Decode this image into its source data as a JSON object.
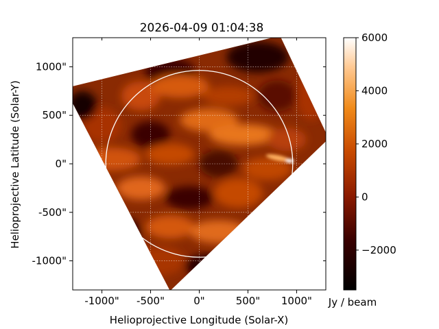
{
  "chart_data": {
    "type": "heatmap",
    "title": "2026-04-09 01:04:38",
    "xlabel": "Helioprojective Longitude (Solar-X)",
    "ylabel": "Helioprojective Latitude (Solar-Y)",
    "xlim": [
      -1300,
      1300
    ],
    "ylim": [
      -1300,
      1300
    ],
    "x_ticks": [
      {
        "value": -1000,
        "label": "-1000\""
      },
      {
        "value": -500,
        "label": "-500\""
      },
      {
        "value": 0,
        "label": "0\""
      },
      {
        "value": 500,
        "label": "500\""
      },
      {
        "value": 1000,
        "label": "1000\""
      }
    ],
    "y_ticks": [
      {
        "value": 1000,
        "label": "1000\""
      },
      {
        "value": 500,
        "label": "500\""
      },
      {
        "value": 0,
        "label": "0\""
      },
      {
        "value": -500,
        "label": "-500\""
      },
      {
        "value": -1000,
        "label": "-1000\""
      }
    ],
    "grid": true,
    "solar_limb_radius_arcsec": 960,
    "colormap": "sdoaia304 (black-red-orange-white)",
    "colorbar": {
      "range": [
        -3500,
        6000
      ],
      "ticks": [
        {
          "value": 6000,
          "label": "6000"
        },
        {
          "value": 4000,
          "label": "4000"
        },
        {
          "value": 2000,
          "label": "2000"
        },
        {
          "value": 0,
          "label": "0"
        },
        {
          "value": -2000,
          "label": "−2000"
        }
      ],
      "unit": "Jy / beam"
    },
    "image_corners_arcsec": [
      [
        830,
        1320
      ],
      [
        1330,
        260
      ],
      [
        -300,
        -1310
      ],
      [
        -1380,
        780
      ]
    ],
    "bright_spot": {
      "x": 930,
      "y": 30,
      "value": 6000
    }
  }
}
